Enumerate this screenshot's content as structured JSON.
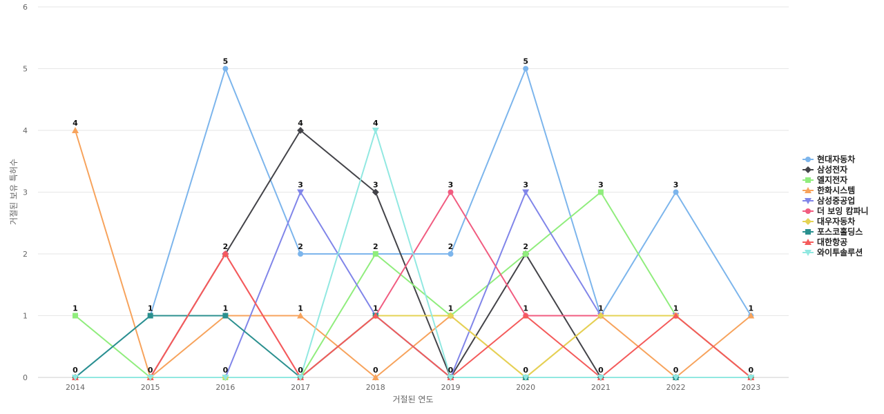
{
  "chart_data": {
    "type": "line",
    "xlabel": "거절된 연도",
    "ylabel": "거절된 보유 특허수",
    "ylim": [
      0,
      6
    ],
    "y_ticks": [
      0,
      1,
      2,
      3,
      4,
      5,
      6
    ],
    "grid": true,
    "legend_position": "right",
    "categories": [
      "2014",
      "2015",
      "2016",
      "2017",
      "2018",
      "2019",
      "2020",
      "2021",
      "2022",
      "2023"
    ],
    "series": [
      {
        "name": "현대자동차",
        "color": "#7cb5ec",
        "marker": "circle",
        "values": [
          0,
          1,
          5,
          2,
          2,
          2,
          5,
          1,
          3,
          1
        ]
      },
      {
        "name": "삼성전자",
        "color": "#434348",
        "marker": "diamond",
        "values": [
          0,
          0,
          2,
          4,
          3,
          0,
          2,
          0,
          0,
          0
        ]
      },
      {
        "name": "엘지전자",
        "color": "#90ed7d",
        "marker": "square",
        "values": [
          1,
          0,
          0,
          0,
          2,
          1,
          2,
          3,
          1,
          0
        ]
      },
      {
        "name": "한화시스템",
        "color": "#f7a35c",
        "marker": "triangle",
        "values": [
          4,
          0,
          1,
          1,
          0,
          1,
          0,
          1,
          0,
          1
        ]
      },
      {
        "name": "삼성중공업",
        "color": "#8085e9",
        "marker": "triangle-down",
        "values": [
          0,
          0,
          0,
          3,
          1,
          0,
          3,
          1,
          1,
          0
        ]
      },
      {
        "name": "더 보잉 캄파니",
        "color": "#f15c80",
        "marker": "circle",
        "values": [
          0,
          0,
          2,
          0,
          1,
          3,
          1,
          1,
          1,
          0
        ]
      },
      {
        "name": "대우자동차",
        "color": "#e4d354",
        "marker": "diamond",
        "values": [
          0,
          0,
          0,
          0,
          1,
          1,
          0,
          1,
          1,
          0
        ]
      },
      {
        "name": "포스코홀딩스",
        "color": "#2b908f",
        "marker": "square",
        "values": [
          0,
          1,
          1,
          0,
          1,
          0,
          0,
          0,
          0,
          0
        ]
      },
      {
        "name": "대한항공",
        "color": "#f45b5b",
        "marker": "triangle",
        "values": [
          0,
          0,
          2,
          0,
          1,
          0,
          1,
          0,
          1,
          0
        ]
      },
      {
        "name": "와이투솔루션",
        "color": "#91e8e1",
        "marker": "triangle-down",
        "values": [
          0,
          0,
          0,
          0,
          4,
          0,
          0,
          0,
          0,
          0
        ]
      }
    ],
    "point_labels": [
      {
        "series": "엘지전자",
        "x": "2014",
        "y": 1
      },
      {
        "series": "한화시스템",
        "x": "2014",
        "y": 4
      },
      {
        "series": "현대자동차",
        "x": "2014",
        "y": 0
      },
      {
        "series": "현대자동차",
        "x": "2015",
        "y": 1
      },
      {
        "series": "삼성전자",
        "x": "2015",
        "y": 0
      },
      {
        "series": "현대자동차",
        "x": "2016",
        "y": 5
      },
      {
        "series": "삼성전자",
        "x": "2016",
        "y": 2
      },
      {
        "series": "한화시스템",
        "x": "2016",
        "y": 1
      },
      {
        "series": "삼성중공업",
        "x": "2016",
        "y": 0
      },
      {
        "series": "삼성전자",
        "x": "2017",
        "y": 4
      },
      {
        "series": "삼성중공업",
        "x": "2017",
        "y": 3
      },
      {
        "series": "현대자동차",
        "x": "2017",
        "y": 2
      },
      {
        "series": "한화시스템",
        "x": "2017",
        "y": 1
      },
      {
        "series": "엘지전자",
        "x": "2017",
        "y": 0
      },
      {
        "series": "와이투솔루션",
        "x": "2018",
        "y": 4
      },
      {
        "series": "삼성전자",
        "x": "2018",
        "y": 3
      },
      {
        "series": "현대자동차",
        "x": "2018",
        "y": 2
      },
      {
        "series": "삼성중공업",
        "x": "2018",
        "y": 1
      },
      {
        "series": "한화시스템",
        "x": "2018",
        "y": 0
      },
      {
        "series": "더 보잉 캄파니",
        "x": "2019",
        "y": 3
      },
      {
        "series": "현대자동차",
        "x": "2019",
        "y": 2
      },
      {
        "series": "엘지전자",
        "x": "2019",
        "y": 1
      },
      {
        "series": "삼성전자",
        "x": "2019",
        "y": 0
      },
      {
        "series": "현대자동차",
        "x": "2020",
        "y": 5
      },
      {
        "series": "삼성중공업",
        "x": "2020",
        "y": 3
      },
      {
        "series": "엘지전자",
        "x": "2020",
        "y": 2
      },
      {
        "series": "더 보잉 캄파니",
        "x": "2020",
        "y": 1
      },
      {
        "series": "한화시스템",
        "x": "2020",
        "y": 0
      },
      {
        "series": "엘지전자",
        "x": "2021",
        "y": 3
      },
      {
        "series": "현대자동차",
        "x": "2021",
        "y": 1
      },
      {
        "series": "삼성전자",
        "x": "2021",
        "y": 0
      },
      {
        "series": "현대자동차",
        "x": "2022",
        "y": 3
      },
      {
        "series": "엘지전자",
        "x": "2022",
        "y": 1
      },
      {
        "series": "한화시스템",
        "x": "2022",
        "y": 0
      },
      {
        "series": "현대자동차",
        "x": "2023",
        "y": 1
      },
      {
        "series": "삼성전자",
        "x": "2023",
        "y": 0
      }
    ]
  }
}
